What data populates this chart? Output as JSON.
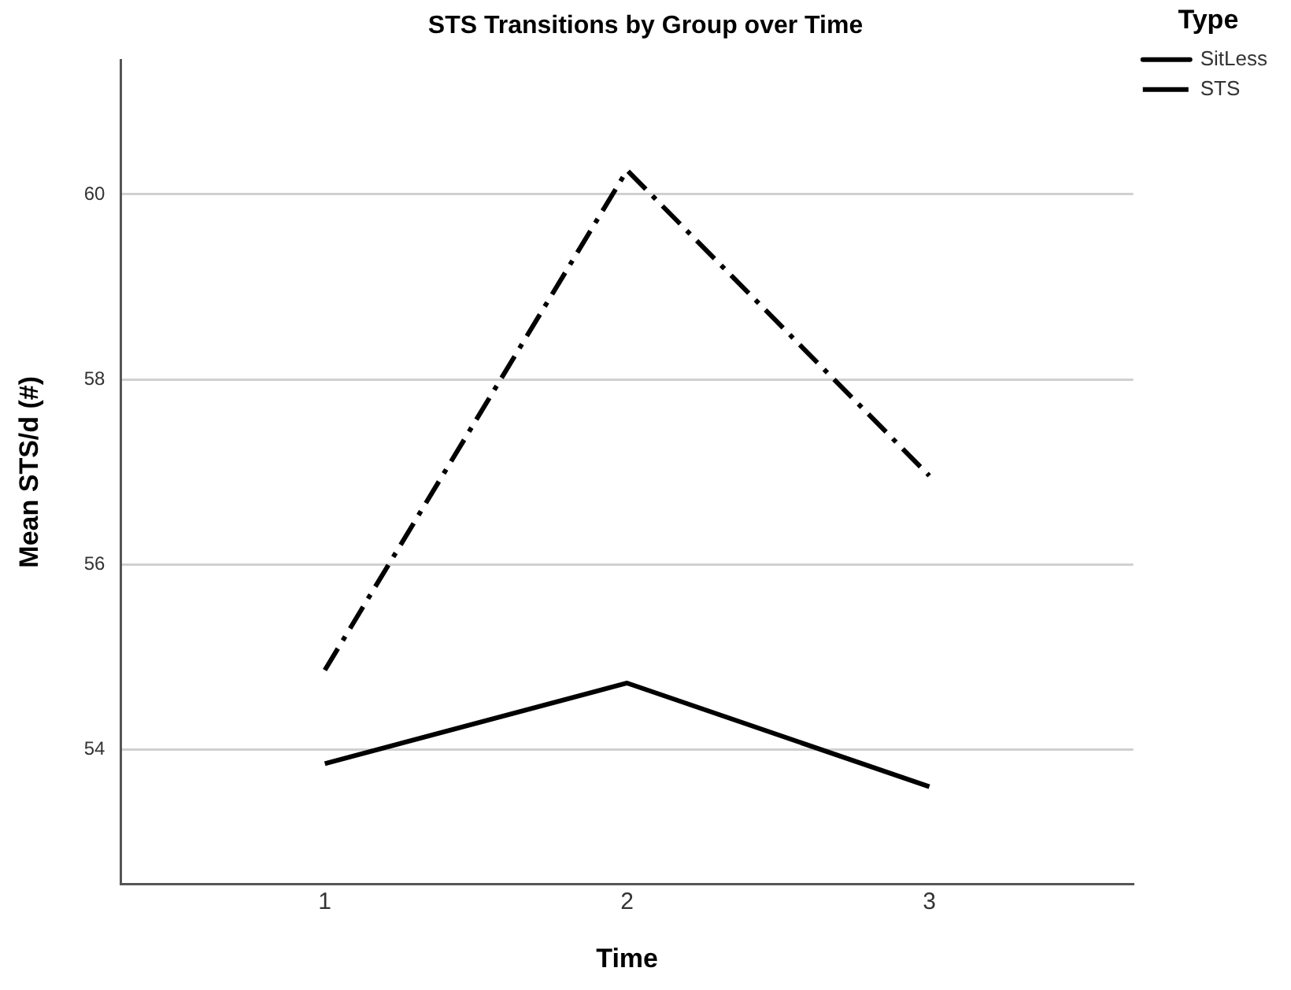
{
  "chart_data": {
    "type": "line",
    "title": "STS Transitions by Group over Time",
    "xlabel": "Time",
    "ylabel": "Mean STS/d (#)",
    "legend_title": "Type",
    "categories": [
      "1",
      "2",
      "3"
    ],
    "series": [
      {
        "name": "SitLess",
        "color": "#000000",
        "line_style": "solid",
        "values": [
          53.85,
          54.72,
          53.6
        ]
      },
      {
        "name": "STS",
        "color": "#000000",
        "line_style": "dashdot",
        "values": [
          54.86,
          60.26,
          56.96
        ]
      }
    ],
    "ylim": [
      52.55,
      61.45
    ],
    "yticks": [
      54,
      56,
      58,
      60
    ],
    "grid": "y",
    "legend": "top right",
    "marker": "none"
  }
}
